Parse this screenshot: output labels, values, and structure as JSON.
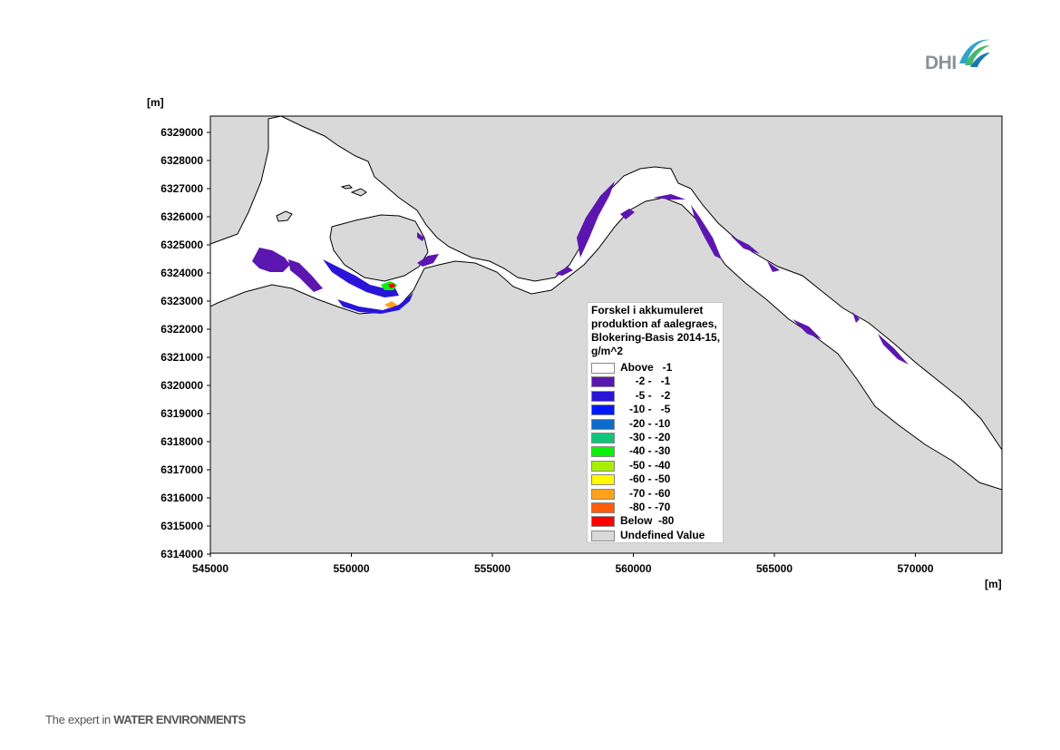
{
  "logo": {
    "text": "DHI"
  },
  "axes": {
    "y_unit": "[m]",
    "x_unit": "[m]",
    "y_ticks": [
      "6329000",
      "6328000",
      "6327000",
      "6326000",
      "6325000",
      "6324000",
      "6323000",
      "6322000",
      "6321000",
      "6320000",
      "6319000",
      "6318000",
      "6317000",
      "6316000",
      "6315000",
      "6314000"
    ],
    "x_ticks": [
      "545000",
      "550000",
      "555000",
      "560000",
      "565000",
      "570000"
    ]
  },
  "map": {
    "land_color": "#d9d9d9",
    "water_color": "#ffffff",
    "outline_color": "#000000"
  },
  "legend": {
    "title": "Forskel i akkumuleret\nproduktion af aalegraes,\nBlokering-Basis 2014-15,\ng/m^2",
    "items": [
      {
        "label": "Above   -1",
        "color": "#ffffff"
      },
      {
        "label": "     -2 -   -1",
        "color": "#5c16b0"
      },
      {
        "label": "     -5 -   -2",
        "color": "#2a14d8"
      },
      {
        "label": "   -10 -   -5",
        "color": "#0018ff"
      },
      {
        "label": "   -20 - -10",
        "color": "#0c6cc8"
      },
      {
        "label": "   -30 - -20",
        "color": "#0ec67a"
      },
      {
        "label": "   -40 - -30",
        "color": "#0cf00c"
      },
      {
        "label": "   -50 - -40",
        "color": "#a8f000"
      },
      {
        "label": "   -60 - -50",
        "color": "#fffa00"
      },
      {
        "label": "   -70 - -60",
        "color": "#ffa21a"
      },
      {
        "label": "   -80 - -70",
        "color": "#ff5c0c"
      },
      {
        "label": "Below  -80",
        "color": "#ff0000"
      },
      {
        "label": "Undefined Value",
        "color": "#d9d9d9"
      }
    ]
  },
  "footer": {
    "tagline_prefix": "The expert in ",
    "tagline_bold": "WATER ENVIRONMENTS"
  }
}
